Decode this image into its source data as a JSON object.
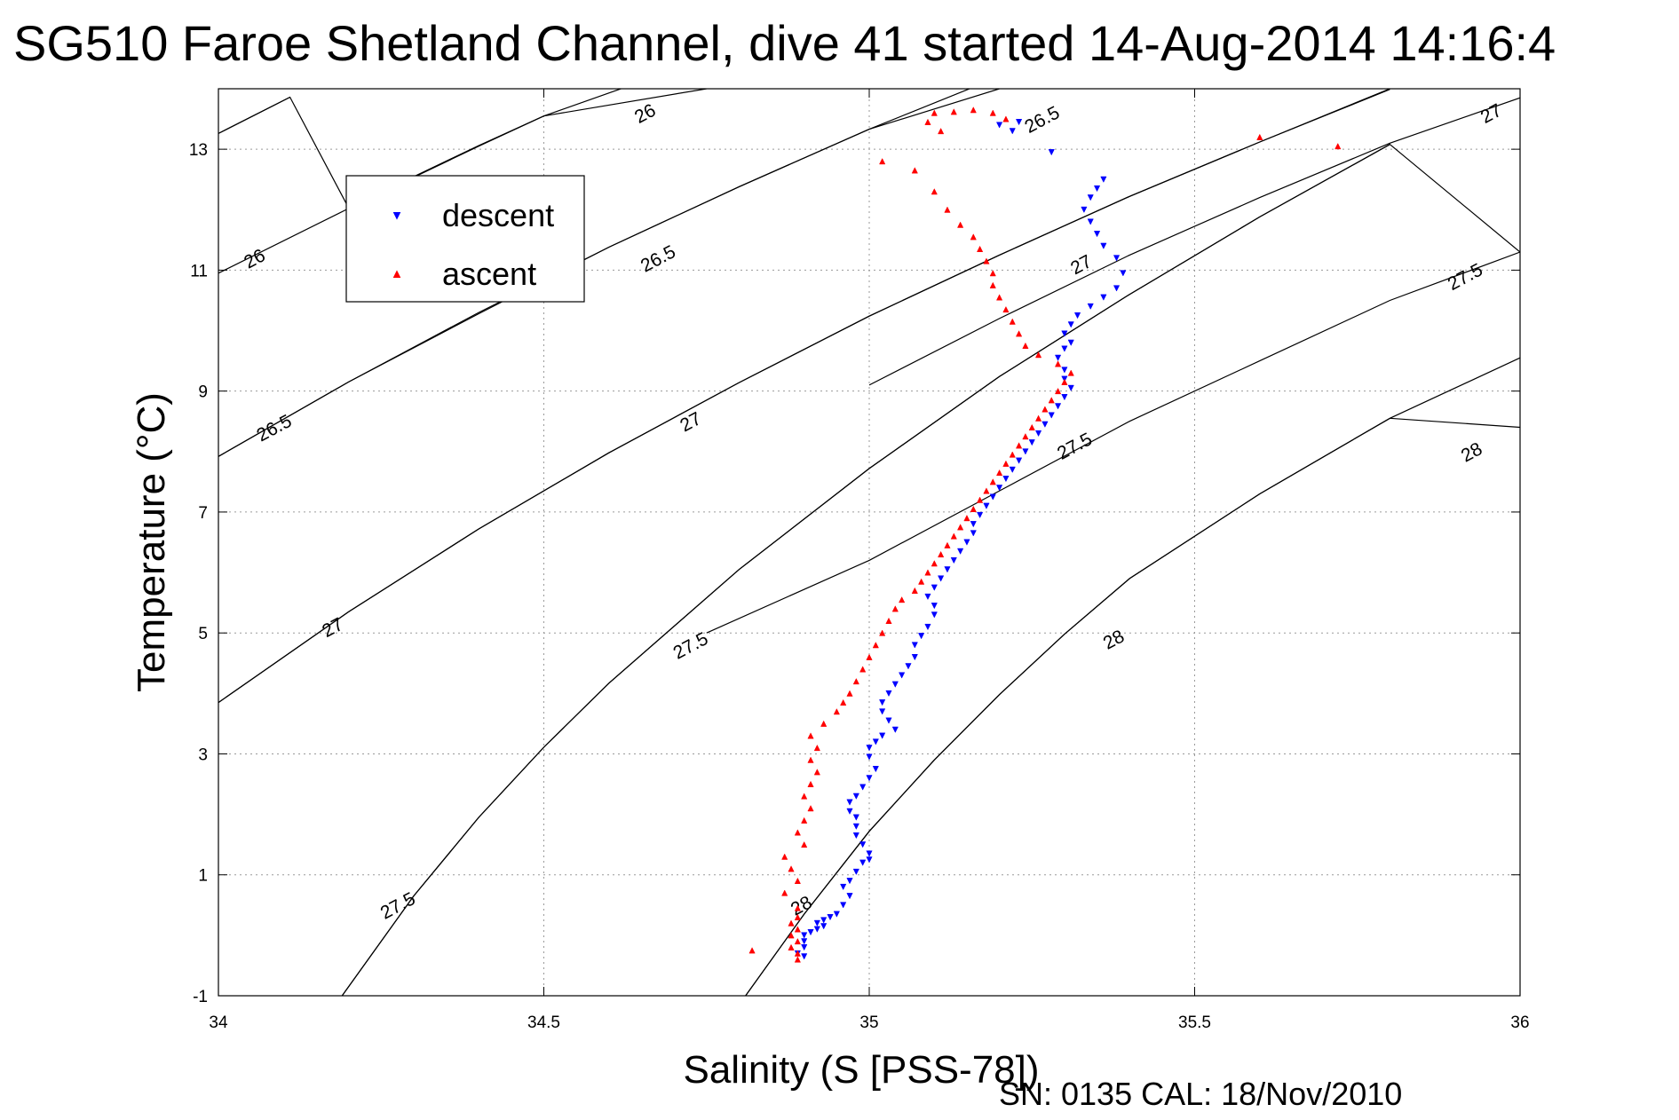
{
  "chart_data": {
    "type": "scatter",
    "title": "SG510 Faroe Shetland Channel, dive 41 started 14-Aug-2014 14:16:4",
    "xlabel": "Salinity (S [PSS-78])",
    "ylabel": "Temperature (°C)",
    "xlim": [
      34,
      36
    ],
    "ylim": [
      -1,
      14
    ],
    "xticks": [
      34,
      34.5,
      35,
      35.5,
      36
    ],
    "xtick_labels": [
      "34",
      "34.5",
      "35",
      "35.5",
      "36"
    ],
    "yticks": [
      -1,
      1,
      3,
      5,
      7,
      9,
      11,
      13
    ],
    "ytick_labels": [
      "-1",
      "1",
      "3",
      "5",
      "7",
      "9",
      "11",
      "13"
    ],
    "grid": true,
    "legend_position": "top-left",
    "footer": "SN: 0135  CAL: 18/Nov/2010",
    "colors": {
      "descent": "#0000ff",
      "ascent": "#ff0000",
      "contour": "#000000"
    },
    "isopycnals": [
      {
        "label": "26",
        "points": [
          [
            34.0,
            13.26
          ],
          [
            34.11,
            13.86
          ],
          [
            34.0,
            10.95
          ],
          [
            34.2,
            12.03
          ],
          [
            34.4,
            13.06
          ],
          [
            34.5,
            13.55
          ],
          [
            34.75,
            14.0
          ]
        ],
        "label_positions": [
          [
            34.06,
            11.1
          ],
          [
            34.66,
            13.5
          ]
        ]
      },
      {
        "label": "26.5",
        "points": [
          [
            34.0,
            7.92
          ],
          [
            34.2,
            9.15
          ],
          [
            34.4,
            10.28
          ],
          [
            34.6,
            11.38
          ],
          [
            34.8,
            12.38
          ],
          [
            35.0,
            13.33
          ],
          [
            35.2,
            14.0
          ]
        ],
        "label_positions": [
          [
            34.09,
            8.3
          ],
          [
            34.68,
            11.1
          ],
          [
            35.27,
            13.4
          ]
        ]
      },
      {
        "label": "27",
        "points": [
          [
            34.0,
            3.85
          ],
          [
            34.2,
            5.35
          ],
          [
            34.4,
            6.72
          ],
          [
            34.6,
            7.98
          ],
          [
            34.8,
            9.14
          ],
          [
            35.0,
            10.24
          ],
          [
            35.2,
            11.25
          ],
          [
            35.4,
            12.22
          ],
          [
            35.6,
            13.12
          ],
          [
            35.8,
            13.99
          ]
        ],
        "label_positions": [
          [
            34.18,
            5.0
          ],
          [
            34.73,
            8.4
          ],
          [
            35.33,
            11.0
          ],
          [
            35.96,
            13.5
          ]
        ]
      },
      {
        "label": "27.5",
        "points": [
          [
            34.19,
            -1.0
          ],
          [
            34.3,
            0.65
          ],
          [
            34.4,
            1.95
          ],
          [
            34.5,
            3.11
          ],
          [
            34.6,
            4.17
          ],
          [
            34.8,
            6.05
          ],
          [
            35.0,
            7.72
          ],
          [
            35.2,
            9.24
          ],
          [
            35.4,
            10.6
          ],
          [
            35.6,
            11.88
          ],
          [
            35.8,
            13.08
          ],
          [
            36.0,
            11.3
          ]
        ],
        "label_positions": [
          [
            34.28,
            0.4
          ],
          [
            34.73,
            4.7
          ],
          [
            35.32,
            8.0
          ],
          [
            35.92,
            10.8
          ]
        ]
      },
      {
        "label": "28",
        "points": [
          [
            34.81,
            -1.0
          ],
          [
            34.9,
            0.35
          ],
          [
            35.0,
            1.72
          ],
          [
            35.1,
            2.9
          ],
          [
            35.2,
            3.98
          ],
          [
            35.3,
            4.98
          ],
          [
            35.4,
            5.9
          ],
          [
            35.6,
            7.3
          ],
          [
            35.8,
            8.55
          ],
          [
            36.0,
            8.4
          ]
        ],
        "label_positions": [
          [
            34.9,
            0.4
          ],
          [
            35.38,
            4.8
          ],
          [
            35.93,
            7.9
          ]
        ]
      }
    ],
    "series": [
      {
        "name": "descent",
        "marker": "down-triangle",
        "points": [
          [
            34.9,
            -0.35
          ],
          [
            34.89,
            -0.3
          ],
          [
            34.9,
            -0.2
          ],
          [
            34.9,
            -0.1
          ],
          [
            34.9,
            0.0
          ],
          [
            34.91,
            0.05
          ],
          [
            34.92,
            0.1
          ],
          [
            34.93,
            0.15
          ],
          [
            34.92,
            0.2
          ],
          [
            34.93,
            0.25
          ],
          [
            34.94,
            0.3
          ],
          [
            34.95,
            0.35
          ],
          [
            34.96,
            0.5
          ],
          [
            34.97,
            0.65
          ],
          [
            34.96,
            0.8
          ],
          [
            34.97,
            0.9
          ],
          [
            34.98,
            1.05
          ],
          [
            34.99,
            1.2
          ],
          [
            35.0,
            1.25
          ],
          [
            35.0,
            1.35
          ],
          [
            34.99,
            1.5
          ],
          [
            34.98,
            1.65
          ],
          [
            34.98,
            1.8
          ],
          [
            34.98,
            1.95
          ],
          [
            34.97,
            2.05
          ],
          [
            34.97,
            2.2
          ],
          [
            34.98,
            2.3
          ],
          [
            34.99,
            2.45
          ],
          [
            35.0,
            2.6
          ],
          [
            35.01,
            2.75
          ],
          [
            35.0,
            2.95
          ],
          [
            35.0,
            3.1
          ],
          [
            35.01,
            3.2
          ],
          [
            35.02,
            3.3
          ],
          [
            35.04,
            3.4
          ],
          [
            35.03,
            3.55
          ],
          [
            35.02,
            3.7
          ],
          [
            35.02,
            3.85
          ],
          [
            35.03,
            4.0
          ],
          [
            35.04,
            4.15
          ],
          [
            35.05,
            4.3
          ],
          [
            35.06,
            4.45
          ],
          [
            35.07,
            4.6
          ],
          [
            35.07,
            4.8
          ],
          [
            35.08,
            4.95
          ],
          [
            35.09,
            5.1
          ],
          [
            35.1,
            5.3
          ],
          [
            35.1,
            5.45
          ],
          [
            35.09,
            5.6
          ],
          [
            35.1,
            5.75
          ],
          [
            35.11,
            5.9
          ],
          [
            35.12,
            6.05
          ],
          [
            35.13,
            6.2
          ],
          [
            35.14,
            6.35
          ],
          [
            35.15,
            6.5
          ],
          [
            35.16,
            6.65
          ],
          [
            35.16,
            6.8
          ],
          [
            35.17,
            6.95
          ],
          [
            35.18,
            7.1
          ],
          [
            35.19,
            7.25
          ],
          [
            35.2,
            7.4
          ],
          [
            35.21,
            7.55
          ],
          [
            35.22,
            7.7
          ],
          [
            35.23,
            7.85
          ],
          [
            35.24,
            8.0
          ],
          [
            35.25,
            8.15
          ],
          [
            35.26,
            8.3
          ],
          [
            35.27,
            8.45
          ],
          [
            35.28,
            8.6
          ],
          [
            35.29,
            8.75
          ],
          [
            35.3,
            8.9
          ],
          [
            35.31,
            9.05
          ],
          [
            35.3,
            9.2
          ],
          [
            35.3,
            9.35
          ],
          [
            35.29,
            9.55
          ],
          [
            35.3,
            9.7
          ],
          [
            35.31,
            9.8
          ],
          [
            35.3,
            9.95
          ],
          [
            35.31,
            10.1
          ],
          [
            35.32,
            10.25
          ],
          [
            35.34,
            10.4
          ],
          [
            35.36,
            10.55
          ],
          [
            35.38,
            10.7
          ],
          [
            35.39,
            10.95
          ],
          [
            35.38,
            11.2
          ],
          [
            35.36,
            11.4
          ],
          [
            35.35,
            11.6
          ],
          [
            35.34,
            11.8
          ],
          [
            35.33,
            12.0
          ],
          [
            35.34,
            12.2
          ],
          [
            35.35,
            12.35
          ],
          [
            35.36,
            12.5
          ],
          [
            35.28,
            12.95
          ],
          [
            35.22,
            13.3
          ],
          [
            35.2,
            13.4
          ],
          [
            35.23,
            13.45
          ]
        ]
      },
      {
        "name": "ascent",
        "marker": "up-triangle",
        "points": [
          [
            34.89,
            -0.4
          ],
          [
            34.89,
            -0.3
          ],
          [
            34.88,
            -0.2
          ],
          [
            34.89,
            -0.1
          ],
          [
            34.88,
            0.0
          ],
          [
            34.89,
            0.1
          ],
          [
            34.88,
            0.2
          ],
          [
            34.89,
            0.3
          ],
          [
            34.89,
            0.45
          ],
          [
            34.82,
            -0.25
          ],
          [
            34.87,
            0.7
          ],
          [
            34.89,
            0.9
          ],
          [
            34.88,
            1.1
          ],
          [
            34.87,
            1.3
          ],
          [
            34.9,
            1.5
          ],
          [
            34.89,
            1.7
          ],
          [
            34.9,
            1.9
          ],
          [
            34.91,
            2.1
          ],
          [
            34.9,
            2.3
          ],
          [
            34.91,
            2.5
          ],
          [
            34.92,
            2.7
          ],
          [
            34.91,
            2.9
          ],
          [
            34.92,
            3.1
          ],
          [
            34.91,
            3.3
          ],
          [
            34.93,
            3.5
          ],
          [
            34.95,
            3.7
          ],
          [
            34.96,
            3.85
          ],
          [
            34.97,
            4.0
          ],
          [
            34.98,
            4.2
          ],
          [
            34.99,
            4.4
          ],
          [
            35.0,
            4.6
          ],
          [
            35.01,
            4.8
          ],
          [
            35.02,
            5.0
          ],
          [
            35.03,
            5.2
          ],
          [
            35.04,
            5.4
          ],
          [
            35.05,
            5.55
          ],
          [
            35.07,
            5.7
          ],
          [
            35.08,
            5.85
          ],
          [
            35.09,
            6.0
          ],
          [
            35.1,
            6.15
          ],
          [
            35.11,
            6.3
          ],
          [
            35.12,
            6.45
          ],
          [
            35.13,
            6.6
          ],
          [
            35.14,
            6.75
          ],
          [
            35.15,
            6.9
          ],
          [
            35.16,
            7.05
          ],
          [
            35.17,
            7.2
          ],
          [
            35.18,
            7.35
          ],
          [
            35.19,
            7.5
          ],
          [
            35.2,
            7.65
          ],
          [
            35.21,
            7.8
          ],
          [
            35.22,
            7.95
          ],
          [
            35.23,
            8.1
          ],
          [
            35.24,
            8.25
          ],
          [
            35.25,
            8.4
          ],
          [
            35.26,
            8.55
          ],
          [
            35.27,
            8.7
          ],
          [
            35.28,
            8.85
          ],
          [
            35.29,
            9.0
          ],
          [
            35.3,
            9.15
          ],
          [
            35.31,
            9.3
          ],
          [
            35.29,
            9.45
          ],
          [
            35.26,
            9.6
          ],
          [
            35.24,
            9.75
          ],
          [
            35.23,
            9.95
          ],
          [
            35.22,
            10.15
          ],
          [
            35.21,
            10.35
          ],
          [
            35.2,
            10.55
          ],
          [
            35.19,
            10.75
          ],
          [
            35.19,
            10.95
          ],
          [
            35.18,
            11.15
          ],
          [
            35.17,
            11.35
          ],
          [
            35.16,
            11.55
          ],
          [
            35.14,
            11.75
          ],
          [
            35.12,
            12.0
          ],
          [
            35.1,
            12.3
          ],
          [
            35.07,
            12.65
          ],
          [
            35.02,
            12.8
          ],
          [
            35.11,
            13.3
          ],
          [
            35.09,
            13.45
          ],
          [
            35.1,
            13.6
          ],
          [
            35.13,
            13.62
          ],
          [
            35.16,
            13.65
          ],
          [
            35.19,
            13.6
          ],
          [
            35.21,
            13.5
          ],
          [
            35.6,
            13.2
          ],
          [
            35.72,
            13.05
          ]
        ]
      }
    ]
  }
}
